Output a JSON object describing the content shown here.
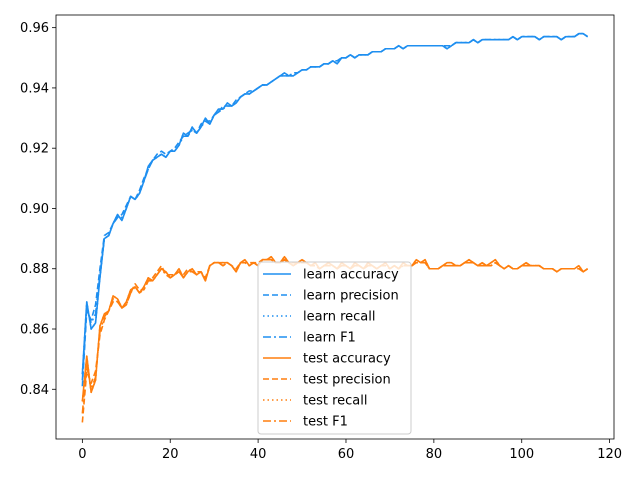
{
  "chart_data": {
    "type": "line",
    "title": "",
    "xlabel": "",
    "ylabel": "",
    "xlim": [
      -6,
      121
    ],
    "ylim": [
      0.8235,
      0.9642
    ],
    "xticks": [
      0,
      20,
      40,
      60,
      80,
      100,
      120
    ],
    "yticks": [
      0.84,
      0.86,
      0.88,
      0.9,
      0.92,
      0.94,
      0.96
    ],
    "ytick_labels": [
      "0.84",
      "0.86",
      "0.88",
      "0.90",
      "0.92",
      "0.94",
      "0.96"
    ],
    "grid": false,
    "legend_position": "lower center",
    "colors": {
      "learn": "#1f8ff0",
      "test": "#ff7f0e"
    },
    "x": [
      0,
      1,
      2,
      3,
      4,
      5,
      6,
      7,
      8,
      9,
      10,
      11,
      12,
      13,
      14,
      15,
      16,
      17,
      18,
      19,
      20,
      21,
      22,
      23,
      24,
      25,
      26,
      27,
      28,
      29,
      30,
      31,
      32,
      33,
      34,
      35,
      36,
      37,
      38,
      39,
      40,
      41,
      42,
      43,
      44,
      45,
      46,
      47,
      48,
      49,
      50,
      51,
      52,
      53,
      54,
      55,
      56,
      57,
      58,
      59,
      60,
      61,
      62,
      63,
      64,
      65,
      66,
      67,
      68,
      69,
      70,
      71,
      72,
      73,
      74,
      75,
      76,
      77,
      78,
      79,
      80,
      81,
      82,
      83,
      84,
      85,
      86,
      87,
      88,
      89,
      90,
      91,
      92,
      93,
      94,
      95,
      96,
      97,
      98,
      99,
      100,
      101,
      102,
      103,
      104,
      105,
      106,
      107,
      108,
      109,
      110,
      111,
      112,
      113,
      114,
      115
    ],
    "series": [
      {
        "name": "learn accuracy",
        "group": "learn",
        "style": "solid",
        "values": [
          0.845,
          0.869,
          0.86,
          0.862,
          0.877,
          0.89,
          0.891,
          0.895,
          0.898,
          0.896,
          0.9,
          0.904,
          0.903,
          0.905,
          0.909,
          0.914,
          0.916,
          0.917,
          0.918,
          0.917,
          0.919,
          0.919,
          0.921,
          0.925,
          0.924,
          0.927,
          0.925,
          0.927,
          0.93,
          0.928,
          0.931,
          0.933,
          0.933,
          0.935,
          0.934,
          0.935,
          0.937,
          0.938,
          0.938,
          0.939,
          0.94,
          0.941,
          0.941,
          0.942,
          0.943,
          0.944,
          0.945,
          0.944,
          0.944,
          0.945,
          0.946,
          0.946,
          0.947,
          0.947,
          0.947,
          0.948,
          0.948,
          0.949,
          0.948,
          0.95,
          0.95,
          0.951,
          0.95,
          0.951,
          0.951,
          0.951,
          0.952,
          0.952,
          0.952,
          0.953,
          0.953,
          0.953,
          0.954,
          0.953,
          0.954,
          0.954,
          0.954,
          0.954,
          0.954,
          0.954,
          0.954,
          0.954,
          0.954,
          0.953,
          0.954,
          0.955,
          0.955,
          0.955,
          0.955,
          0.956,
          0.955,
          0.956,
          0.956,
          0.956,
          0.956,
          0.956,
          0.956,
          0.956,
          0.957,
          0.956,
          0.957,
          0.957,
          0.957,
          0.957,
          0.956,
          0.957,
          0.957,
          0.957,
          0.957,
          0.956,
          0.957,
          0.957,
          0.957,
          0.958,
          0.958,
          0.957
        ]
      },
      {
        "name": "learn precision",
        "group": "learn",
        "style": "dashed",
        "values": [
          0.841,
          0.866,
          0.863,
          0.868,
          0.88,
          0.891,
          0.892,
          0.895,
          0.897,
          0.898,
          0.901,
          0.904,
          0.903,
          0.906,
          0.91,
          0.913,
          0.916,
          0.918,
          0.919,
          0.918,
          0.919,
          0.92,
          0.922,
          0.924,
          0.925,
          0.926,
          0.925,
          0.928,
          0.929,
          0.929,
          0.931,
          0.932,
          0.934,
          0.934,
          0.934,
          0.936,
          0.937,
          0.938,
          0.939,
          0.939,
          0.94,
          0.941,
          0.941,
          0.942,
          0.943,
          0.944,
          0.944,
          0.944,
          0.945,
          0.945,
          0.946,
          0.946,
          0.947,
          0.947,
          0.947,
          0.948,
          0.948,
          0.949,
          0.949,
          0.95,
          0.95,
          0.951,
          0.95,
          0.951,
          0.951,
          0.951,
          0.952,
          0.952,
          0.952,
          0.953,
          0.953,
          0.953,
          0.954,
          0.953,
          0.954,
          0.954,
          0.954,
          0.954,
          0.954,
          0.954,
          0.954,
          0.954,
          0.954,
          0.954,
          0.954,
          0.955,
          0.955,
          0.955,
          0.955,
          0.956,
          0.955,
          0.956,
          0.956,
          0.956,
          0.956,
          0.956,
          0.956,
          0.956,
          0.957,
          0.956,
          0.957,
          0.957,
          0.957,
          0.957,
          0.956,
          0.957,
          0.957,
          0.957,
          0.957,
          0.956,
          0.957,
          0.957,
          0.957,
          0.958,
          0.958,
          0.957
        ]
      },
      {
        "name": "learn recall",
        "group": "learn",
        "style": "dotted",
        "values": [
          0.845,
          0.869,
          0.86,
          0.862,
          0.877,
          0.89,
          0.891,
          0.895,
          0.898,
          0.896,
          0.9,
          0.904,
          0.903,
          0.905,
          0.909,
          0.914,
          0.916,
          0.917,
          0.918,
          0.917,
          0.919,
          0.919,
          0.921,
          0.925,
          0.924,
          0.927,
          0.925,
          0.927,
          0.93,
          0.928,
          0.931,
          0.933,
          0.933,
          0.935,
          0.934,
          0.935,
          0.937,
          0.938,
          0.938,
          0.939,
          0.94,
          0.941,
          0.941,
          0.942,
          0.943,
          0.944,
          0.945,
          0.944,
          0.944,
          0.945,
          0.946,
          0.946,
          0.947,
          0.947,
          0.947,
          0.948,
          0.948,
          0.949,
          0.948,
          0.95,
          0.95,
          0.951,
          0.95,
          0.951,
          0.951,
          0.951,
          0.952,
          0.952,
          0.952,
          0.953,
          0.953,
          0.953,
          0.954,
          0.953,
          0.954,
          0.954,
          0.954,
          0.954,
          0.954,
          0.954,
          0.954,
          0.954,
          0.954,
          0.953,
          0.954,
          0.955,
          0.955,
          0.955,
          0.955,
          0.956,
          0.955,
          0.956,
          0.956,
          0.956,
          0.956,
          0.956,
          0.956,
          0.956,
          0.957,
          0.956,
          0.957,
          0.957,
          0.957,
          0.957,
          0.956,
          0.957,
          0.957,
          0.957,
          0.957,
          0.956,
          0.957,
          0.957,
          0.957,
          0.958,
          0.958,
          0.957
        ]
      },
      {
        "name": "learn F1",
        "group": "learn",
        "style": "dashdot",
        "values": [
          0.843,
          0.867,
          0.862,
          0.865,
          0.878,
          0.89,
          0.891,
          0.895,
          0.897,
          0.897,
          0.9,
          0.904,
          0.903,
          0.905,
          0.909,
          0.913,
          0.916,
          0.917,
          0.918,
          0.917,
          0.919,
          0.919,
          0.921,
          0.924,
          0.924,
          0.926,
          0.925,
          0.927,
          0.929,
          0.928,
          0.931,
          0.932,
          0.933,
          0.934,
          0.934,
          0.935,
          0.937,
          0.938,
          0.938,
          0.939,
          0.94,
          0.941,
          0.941,
          0.942,
          0.943,
          0.944,
          0.944,
          0.944,
          0.944,
          0.945,
          0.946,
          0.946,
          0.947,
          0.947,
          0.947,
          0.948,
          0.948,
          0.949,
          0.948,
          0.95,
          0.95,
          0.951,
          0.95,
          0.951,
          0.951,
          0.951,
          0.952,
          0.952,
          0.952,
          0.953,
          0.953,
          0.953,
          0.954,
          0.953,
          0.954,
          0.954,
          0.954,
          0.954,
          0.954,
          0.954,
          0.954,
          0.954,
          0.954,
          0.953,
          0.954,
          0.955,
          0.955,
          0.955,
          0.955,
          0.956,
          0.955,
          0.956,
          0.956,
          0.956,
          0.956,
          0.956,
          0.956,
          0.956,
          0.957,
          0.956,
          0.957,
          0.957,
          0.957,
          0.957,
          0.956,
          0.957,
          0.957,
          0.957,
          0.957,
          0.956,
          0.957,
          0.957,
          0.957,
          0.958,
          0.958,
          0.957
        ]
      },
      {
        "name": "test accuracy",
        "group": "test",
        "style": "solid",
        "values": [
          0.836,
          0.851,
          0.839,
          0.843,
          0.861,
          0.865,
          0.866,
          0.871,
          0.87,
          0.867,
          0.869,
          0.873,
          0.874,
          0.872,
          0.874,
          0.877,
          0.876,
          0.878,
          0.88,
          0.879,
          0.877,
          0.878,
          0.88,
          0.877,
          0.879,
          0.88,
          0.878,
          0.879,
          0.876,
          0.881,
          0.882,
          0.882,
          0.882,
          0.882,
          0.881,
          0.879,
          0.882,
          0.883,
          0.881,
          0.882,
          0.881,
          0.883,
          0.883,
          0.884,
          0.882,
          0.882,
          0.884,
          0.882,
          0.881,
          0.882,
          0.883,
          0.882,
          0.881,
          0.882,
          0.88,
          0.881,
          0.882,
          0.881,
          0.88,
          0.882,
          0.881,
          0.88,
          0.882,
          0.881,
          0.88,
          0.882,
          0.881,
          0.88,
          0.881,
          0.882,
          0.88,
          0.881,
          0.88,
          0.882,
          0.881,
          0.881,
          0.883,
          0.882,
          0.883,
          0.88,
          0.88,
          0.88,
          0.881,
          0.882,
          0.882,
          0.881,
          0.881,
          0.882,
          0.883,
          0.882,
          0.881,
          0.882,
          0.881,
          0.882,
          0.883,
          0.881,
          0.88,
          0.881,
          0.88,
          0.88,
          0.881,
          0.882,
          0.881,
          0.881,
          0.881,
          0.88,
          0.88,
          0.88,
          0.879,
          0.88,
          0.88,
          0.88,
          0.88,
          0.881,
          0.879,
          0.88
        ]
      },
      {
        "name": "test precision",
        "group": "test",
        "style": "dashed",
        "values": [
          0.829,
          0.846,
          0.842,
          0.846,
          0.858,
          0.863,
          0.866,
          0.869,
          0.869,
          0.867,
          0.868,
          0.872,
          0.875,
          0.873,
          0.873,
          0.876,
          0.877,
          0.879,
          0.881,
          0.878,
          0.878,
          0.878,
          0.879,
          0.878,
          0.88,
          0.879,
          0.879,
          0.879,
          0.877,
          0.881,
          0.882,
          0.882,
          0.881,
          0.882,
          0.881,
          0.88,
          0.882,
          0.882,
          0.882,
          0.882,
          0.882,
          0.883,
          0.883,
          0.883,
          0.882,
          0.882,
          0.883,
          0.882,
          0.882,
          0.882,
          0.882,
          0.882,
          0.881,
          0.881,
          0.88,
          0.881,
          0.881,
          0.881,
          0.88,
          0.881,
          0.881,
          0.88,
          0.881,
          0.881,
          0.88,
          0.881,
          0.881,
          0.88,
          0.881,
          0.881,
          0.88,
          0.881,
          0.88,
          0.881,
          0.881,
          0.881,
          0.882,
          0.882,
          0.882,
          0.88,
          0.88,
          0.88,
          0.881,
          0.881,
          0.881,
          0.881,
          0.881,
          0.882,
          0.882,
          0.882,
          0.881,
          0.881,
          0.881,
          0.881,
          0.882,
          0.881,
          0.88,
          0.881,
          0.88,
          0.88,
          0.881,
          0.881,
          0.881,
          0.881,
          0.881,
          0.88,
          0.88,
          0.88,
          0.879,
          0.88,
          0.88,
          0.88,
          0.88,
          0.88,
          0.879,
          0.88
        ]
      },
      {
        "name": "test recall",
        "group": "test",
        "style": "dotted",
        "values": [
          0.836,
          0.851,
          0.839,
          0.843,
          0.861,
          0.865,
          0.866,
          0.871,
          0.87,
          0.867,
          0.869,
          0.873,
          0.874,
          0.872,
          0.874,
          0.877,
          0.876,
          0.878,
          0.88,
          0.879,
          0.877,
          0.878,
          0.88,
          0.877,
          0.879,
          0.88,
          0.878,
          0.879,
          0.876,
          0.881,
          0.882,
          0.882,
          0.882,
          0.882,
          0.881,
          0.879,
          0.882,
          0.883,
          0.881,
          0.882,
          0.881,
          0.883,
          0.883,
          0.884,
          0.882,
          0.882,
          0.884,
          0.882,
          0.881,
          0.882,
          0.883,
          0.882,
          0.881,
          0.882,
          0.88,
          0.881,
          0.882,
          0.881,
          0.88,
          0.882,
          0.881,
          0.88,
          0.882,
          0.881,
          0.88,
          0.882,
          0.881,
          0.88,
          0.881,
          0.882,
          0.88,
          0.881,
          0.88,
          0.882,
          0.881,
          0.881,
          0.883,
          0.882,
          0.883,
          0.88,
          0.88,
          0.88,
          0.881,
          0.882,
          0.882,
          0.881,
          0.881,
          0.882,
          0.883,
          0.882,
          0.881,
          0.882,
          0.881,
          0.882,
          0.883,
          0.881,
          0.88,
          0.881,
          0.88,
          0.88,
          0.881,
          0.882,
          0.881,
          0.881,
          0.881,
          0.88,
          0.88,
          0.88,
          0.879,
          0.88,
          0.88,
          0.88,
          0.88,
          0.881,
          0.879,
          0.88
        ]
      },
      {
        "name": "test F1",
        "group": "test",
        "style": "dashdot",
        "values": [
          0.832,
          0.848,
          0.84,
          0.844,
          0.859,
          0.864,
          0.866,
          0.87,
          0.869,
          0.867,
          0.868,
          0.872,
          0.874,
          0.872,
          0.873,
          0.876,
          0.876,
          0.878,
          0.88,
          0.878,
          0.877,
          0.878,
          0.879,
          0.877,
          0.879,
          0.879,
          0.878,
          0.879,
          0.876,
          0.881,
          0.882,
          0.882,
          0.881,
          0.882,
          0.881,
          0.879,
          0.882,
          0.882,
          0.881,
          0.882,
          0.881,
          0.883,
          0.883,
          0.883,
          0.882,
          0.882,
          0.883,
          0.882,
          0.881,
          0.882,
          0.882,
          0.882,
          0.881,
          0.881,
          0.88,
          0.881,
          0.881,
          0.881,
          0.88,
          0.881,
          0.881,
          0.88,
          0.881,
          0.881,
          0.88,
          0.881,
          0.881,
          0.88,
          0.881,
          0.881,
          0.88,
          0.881,
          0.88,
          0.881,
          0.881,
          0.881,
          0.882,
          0.882,
          0.882,
          0.88,
          0.88,
          0.88,
          0.881,
          0.881,
          0.881,
          0.881,
          0.881,
          0.882,
          0.882,
          0.882,
          0.881,
          0.881,
          0.881,
          0.881,
          0.882,
          0.881,
          0.88,
          0.881,
          0.88,
          0.88,
          0.881,
          0.881,
          0.881,
          0.881,
          0.881,
          0.88,
          0.88,
          0.88,
          0.879,
          0.88,
          0.88,
          0.88,
          0.88,
          0.88,
          0.879,
          0.88
        ]
      }
    ]
  }
}
